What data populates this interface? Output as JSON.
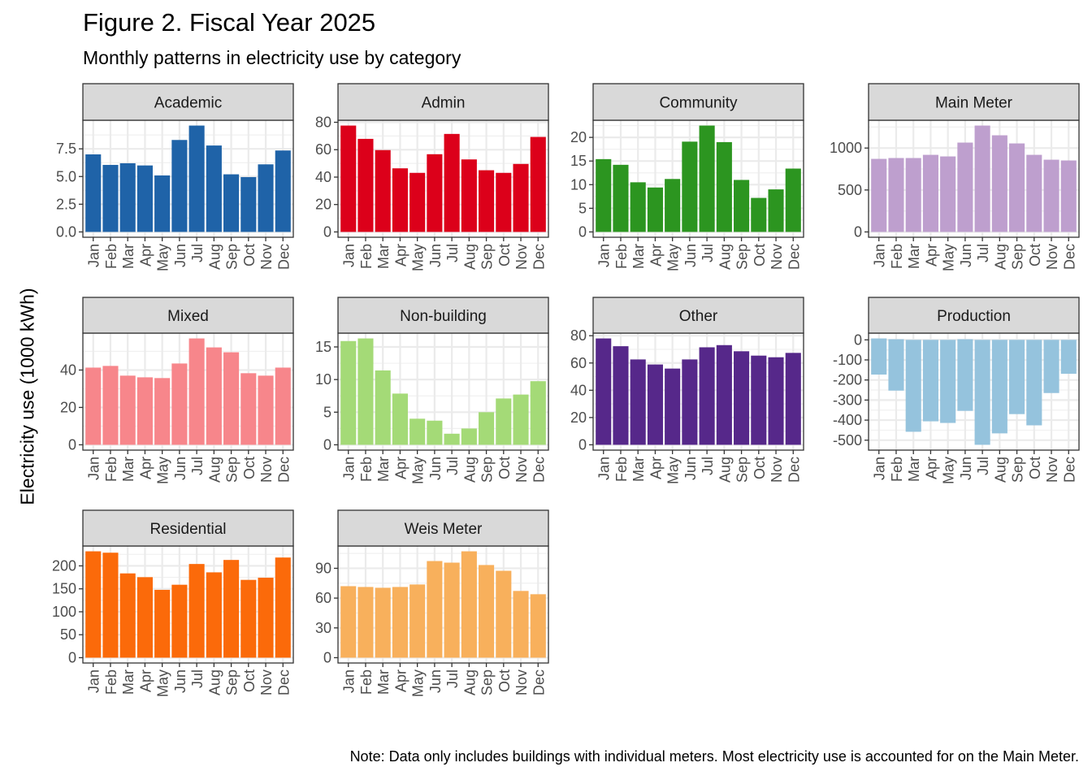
{
  "title": "Figure 2. Fiscal Year 2025",
  "subtitle": "Monthly patterns in electricity use by category",
  "note": "Note: Data only includes buildings with individual meters. Most electricity use is accounted for on the Main Meter.",
  "chart_data": {
    "type": "bar",
    "title": "Figure 2. Fiscal Year 2025",
    "subtitle": "Monthly patterns in electricity use by category",
    "xlabel": "",
    "ylabel": "Electricity use (1000 kWh)",
    "facet_scales": "free_y",
    "grid": true,
    "categories": [
      "Jan",
      "Feb",
      "Mar",
      "Apr",
      "May",
      "Jun",
      "Jul",
      "Aug",
      "Sep",
      "Oct",
      "Nov",
      "Dec"
    ],
    "panels": [
      {
        "name": "Academic",
        "color": "#1F63A8",
        "yticks": [
          0,
          2.5,
          5,
          7.5
        ],
        "ytick_labels": [
          "0.0",
          "2.5",
          "5.0",
          "7.5"
        ],
        "values": [
          7.0,
          6.05,
          6.2,
          6.0,
          5.1,
          8.3,
          9.6,
          7.8,
          5.2,
          4.95,
          6.1,
          7.35
        ]
      },
      {
        "name": "Admin",
        "color": "#DC001A",
        "yticks": [
          0,
          20,
          40,
          60,
          80
        ],
        "ytick_labels": [
          "0",
          "20",
          "40",
          "60",
          "80"
        ],
        "values": [
          77.6,
          67.9,
          59.7,
          46.4,
          43.1,
          56.7,
          71.5,
          52.9,
          45.0,
          43.1,
          49.6,
          69.3
        ]
      },
      {
        "name": "Community",
        "color": "#2C9520",
        "yticks": [
          0,
          5,
          10,
          15,
          20
        ],
        "ytick_labels": [
          "0",
          "5",
          "10",
          "15",
          "20"
        ],
        "values": [
          15.4,
          14.2,
          10.5,
          9.4,
          11.2,
          19.1,
          22.5,
          19.0,
          11.0,
          7.2,
          9.0,
          13.4
        ]
      },
      {
        "name": "Main Meter",
        "color": "#BE9FCE",
        "yticks": [
          0,
          500,
          1000
        ],
        "ytick_labels": [
          "0",
          "500",
          "1000"
        ],
        "values": [
          871,
          881,
          881,
          919,
          900,
          1065,
          1268,
          1152,
          1055,
          919,
          861,
          852
        ]
      },
      {
        "name": "Mixed",
        "color": "#F7868B",
        "yticks": [
          0,
          20,
          40
        ],
        "ytick_labels": [
          "0",
          "20",
          "40"
        ],
        "values": [
          41.3,
          42.2,
          37.0,
          36.1,
          35.7,
          43.5,
          56.9,
          52.1,
          49.5,
          38.3,
          37.0,
          41.3
        ]
      },
      {
        "name": "Non-building",
        "color": "#A4DA77",
        "yticks": [
          0,
          5,
          10,
          15
        ],
        "ytick_labels": [
          "0",
          "5",
          "10",
          "15"
        ],
        "values": [
          15.9,
          16.3,
          11.4,
          7.85,
          4.0,
          3.7,
          1.7,
          2.5,
          5.0,
          7.1,
          7.7,
          9.75
        ]
      },
      {
        "name": "Other",
        "color": "#56288A",
        "yticks": [
          0,
          20,
          40,
          60,
          80
        ],
        "ytick_labels": [
          "0",
          "20",
          "40",
          "60",
          "80"
        ],
        "values": [
          78.0,
          72.3,
          62.6,
          58.9,
          55.9,
          62.6,
          71.5,
          73.1,
          68.6,
          65.4,
          64.2,
          67.4
        ]
      },
      {
        "name": "Production",
        "color": "#95C3DD",
        "yticks": [
          -500,
          -400,
          -300,
          -200,
          -100,
          0
        ],
        "ytick_labels": [
          "-500",
          "-400",
          "-300",
          "-200",
          "-100",
          "0"
        ],
        "values": [
          -173,
          -253,
          -458,
          -406,
          -414,
          -354,
          -523,
          -466,
          -370,
          -426,
          -265,
          -169
        ],
        "positive_offsets": [
          7,
          3,
          0,
          0,
          0,
          3,
          0,
          0,
          0,
          0,
          0,
          0
        ]
      },
      {
        "name": "Residential",
        "color": "#FB6A0A",
        "yticks": [
          0,
          50,
          100,
          150,
          200
        ],
        "ytick_labels": [
          "0",
          "50",
          "100",
          "150",
          "200"
        ],
        "values": [
          231.7,
          228.7,
          183.6,
          175.4,
          147.8,
          158.9,
          204.1,
          185.9,
          212.9,
          169.5,
          174.2,
          218.2
        ]
      },
      {
        "name": "Weis Meter",
        "color": "#F8B05C",
        "yticks": [
          0,
          30,
          60,
          90
        ],
        "ytick_labels": [
          "0",
          "30",
          "60",
          "90"
        ],
        "values": [
          72.0,
          71.2,
          70.4,
          71.2,
          73.7,
          97.3,
          95.7,
          107.1,
          93.3,
          87.5,
          67.2,
          63.9
        ]
      }
    ]
  }
}
